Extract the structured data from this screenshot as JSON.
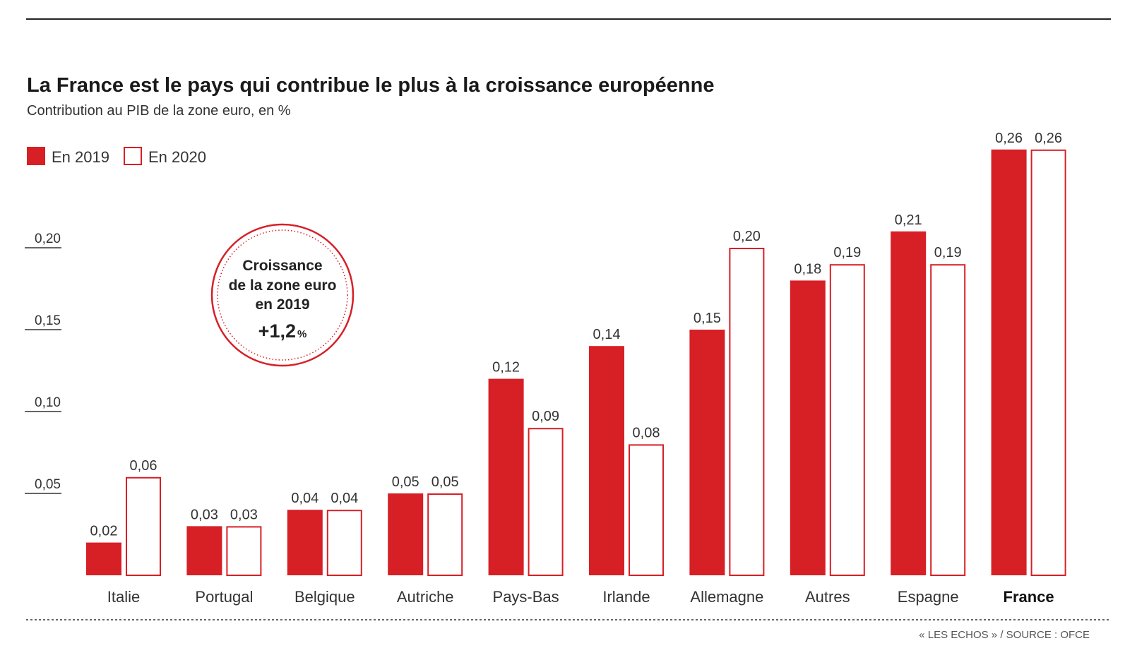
{
  "chart_data": {
    "type": "bar",
    "title": "La France est le pays qui contribue le plus à la croissance européenne",
    "subtitle": "Contribution au PIB de la zone euro, en %",
    "categories": [
      "Italie",
      "Portugal",
      "Belgique",
      "Autriche",
      "Pays-Bas",
      "Irlande",
      "Allemagne",
      "Autres",
      "Espagne",
      "France"
    ],
    "highlight_category": "France",
    "series": [
      {
        "name": "En 2019",
        "style": "filled",
        "values": [
          0.02,
          0.03,
          0.04,
          0.05,
          0.12,
          0.14,
          0.15,
          0.18,
          0.21,
          0.26
        ],
        "labels": [
          "0,02",
          "0,03",
          "0,04",
          "0,05",
          "0,12",
          "0,14",
          "0,15",
          "0,18",
          "0,21",
          "0,26"
        ]
      },
      {
        "name": "En 2020",
        "style": "outline",
        "values": [
          0.06,
          0.03,
          0.04,
          0.05,
          0.09,
          0.08,
          0.2,
          0.19,
          0.19,
          0.26
        ],
        "labels": [
          "0,06",
          "0,03",
          "0,04",
          "0,05",
          "0,09",
          "0,08",
          "0,20",
          "0,19",
          "0,19",
          "0,26"
        ]
      }
    ],
    "yticks": [
      0.05,
      0.1,
      0.15,
      0.2
    ],
    "ytick_labels": [
      "0,05",
      "0,10",
      "0,15",
      "0,20"
    ],
    "ylim": [
      0,
      0.26
    ],
    "legend_position": "top-left",
    "grid": false,
    "annotation": {
      "lines": [
        "Croissance",
        "de la zone euro",
        "en 2019"
      ],
      "value": "+1,2",
      "unit": "%"
    },
    "source": "« LES ECHOS » / SOURCE : OFCE"
  },
  "colors": {
    "accent": "#d71f26",
    "text": "#222222",
    "axis": "#333333"
  }
}
